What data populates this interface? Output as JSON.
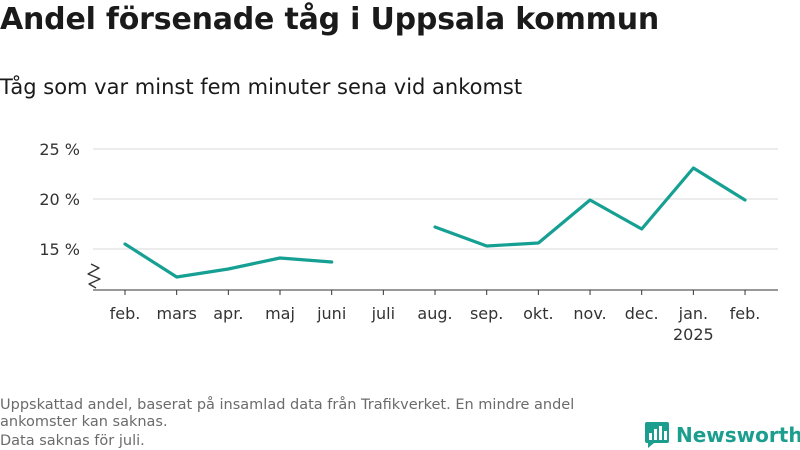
{
  "chart_data": {
    "type": "line",
    "title": "Andel försenade tåg i Uppsala kommun",
    "subtitle": "Tåg som var minst fem minuter sena vid ankomst",
    "categories": [
      "feb.",
      "mars",
      "apr.",
      "maj",
      "juni",
      "juli",
      "aug.",
      "sep.",
      "okt.",
      "nov.",
      "dec.",
      "jan.",
      "feb."
    ],
    "year_label": "2025",
    "series": [
      {
        "values": [
          15.5,
          12.2,
          13.0,
          14.1,
          13.7,
          null,
          17.2,
          15.3,
          15.6,
          19.9,
          17.0,
          23.1,
          19.9
        ],
        "color": "#16a093"
      }
    ],
    "yticks": [
      15,
      20,
      25
    ],
    "ytick_labels": [
      "15 %",
      "20 %",
      "25 %"
    ],
    "ylim": [
      10.5,
      25
    ],
    "axis_break": true,
    "grid": true
  },
  "notes": [
    "Uppskattad andel, baserat på insamlad data från Trafikverket. En mindre andel",
    "ankomster kan saknas.",
    "Data saknas för juli."
  ],
  "brand": {
    "name": "Newsworthy",
    "color": "#1b9e8e",
    "icon": "bar-chart-speech-icon"
  }
}
